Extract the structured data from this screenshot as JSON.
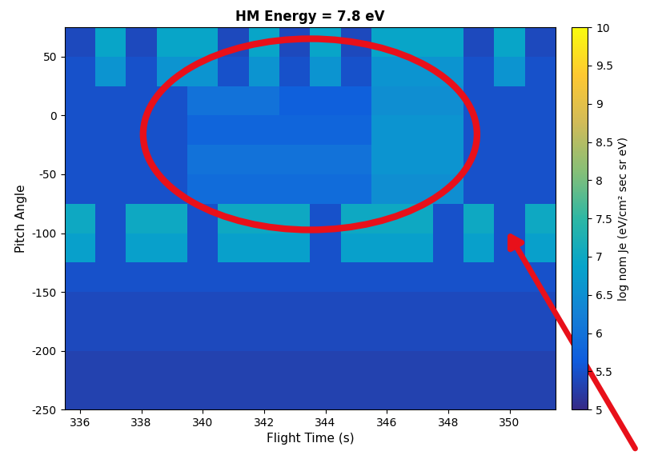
{
  "chart_data": {
    "type": "heatmap",
    "title": "HM Energy = 7.8 eV",
    "x_label": "Flight Time (s)",
    "y_label": "Pitch Angle",
    "xlim": [
      335.5,
      351.5
    ],
    "xticks": [
      336,
      338,
      340,
      342,
      344,
      346,
      348,
      350
    ],
    "ylim": [
      -250,
      75
    ],
    "yticks": [
      -250,
      -200,
      -150,
      -100,
      -50,
      0,
      50
    ],
    "x_edges": [
      335.5,
      336.5,
      337.5,
      338.5,
      339.5,
      340.5,
      341.5,
      342.5,
      343.5,
      344.5,
      345.5,
      346.5,
      347.5,
      348.5,
      349.5,
      350.5,
      351.5
    ],
    "y_edges": [
      -250,
      -225,
      -200,
      -175,
      -150,
      -125,
      -100,
      -75,
      -50,
      -25,
      0,
      25,
      50,
      75
    ],
    "cells": [
      [
        5.3,
        5.3,
        5.3,
        5.3,
        5.3,
        5.3,
        5.3,
        5.3,
        5.3,
        5.3,
        5.3,
        5.3,
        5.3,
        5.3,
        5.3,
        5.3
      ],
      [
        5.3,
        5.3,
        5.3,
        5.3,
        5.3,
        5.3,
        5.3,
        5.3,
        5.3,
        5.3,
        5.3,
        5.3,
        5.3,
        5.3,
        5.3,
        5.3
      ],
      [
        5.4,
        5.4,
        5.4,
        5.4,
        5.4,
        5.4,
        5.4,
        5.4,
        5.4,
        5.4,
        5.4,
        5.4,
        5.4,
        5.4,
        5.4,
        5.4
      ],
      [
        5.4,
        5.4,
        5.4,
        5.4,
        5.4,
        5.4,
        5.4,
        5.4,
        5.4,
        5.4,
        5.4,
        5.4,
        5.4,
        5.4,
        5.4,
        5.4
      ],
      [
        5.5,
        5.5,
        5.5,
        5.5,
        5.5,
        5.5,
        5.5,
        5.5,
        5.5,
        5.5,
        5.5,
        5.5,
        5.5,
        5.5,
        5.5,
        5.5
      ],
      [
        6.8,
        5.5,
        6.8,
        6.8,
        5.5,
        6.8,
        6.8,
        6.8,
        5.5,
        6.8,
        6.8,
        6.8,
        5.5,
        6.8,
        5.5,
        6.8
      ],
      [
        7.0,
        5.5,
        7.0,
        7.0,
        5.5,
        7.0,
        7.0,
        7.0,
        5.5,
        7.0,
        7.0,
        7.0,
        5.5,
        7.0,
        5.5,
        7.0
      ],
      [
        5.5,
        5.5,
        5.5,
        5.5,
        5.9,
        5.9,
        5.9,
        5.9,
        5.9,
        5.9,
        6.5,
        6.5,
        6.5,
        5.5,
        5.5,
        5.5
      ],
      [
        5.5,
        5.5,
        5.5,
        5.5,
        6.0,
        6.0,
        6.0,
        6.0,
        6.0,
        6.0,
        6.6,
        6.6,
        6.6,
        5.5,
        5.5,
        5.5
      ],
      [
        5.5,
        5.5,
        5.5,
        5.5,
        5.8,
        5.8,
        5.8,
        5.8,
        5.8,
        5.8,
        6.6,
        6.6,
        6.6,
        5.5,
        5.5,
        5.5
      ],
      [
        5.5,
        5.5,
        5.5,
        5.5,
        6.0,
        6.0,
        6.0,
        5.7,
        5.7,
        5.7,
        6.5,
        6.5,
        6.5,
        5.5,
        5.5,
        5.5
      ],
      [
        5.5,
        6.6,
        5.5,
        6.6,
        6.6,
        5.5,
        6.6,
        5.5,
        6.6,
        5.5,
        6.6,
        6.6,
        6.6,
        5.5,
        6.6,
        5.5
      ],
      [
        5.4,
        6.9,
        5.4,
        6.9,
        6.9,
        5.4,
        6.9,
        5.4,
        6.9,
        5.4,
        6.9,
        6.9,
        6.9,
        5.4,
        6.9,
        5.4
      ]
    ],
    "colorbar": {
      "label": "log nom Je (eV/cm² sec sr eV)",
      "range": [
        5,
        10
      ],
      "ticks": [
        5,
        5.5,
        6,
        6.5,
        7,
        7.5,
        8,
        8.5,
        9,
        9.5,
        10
      ]
    }
  }
}
